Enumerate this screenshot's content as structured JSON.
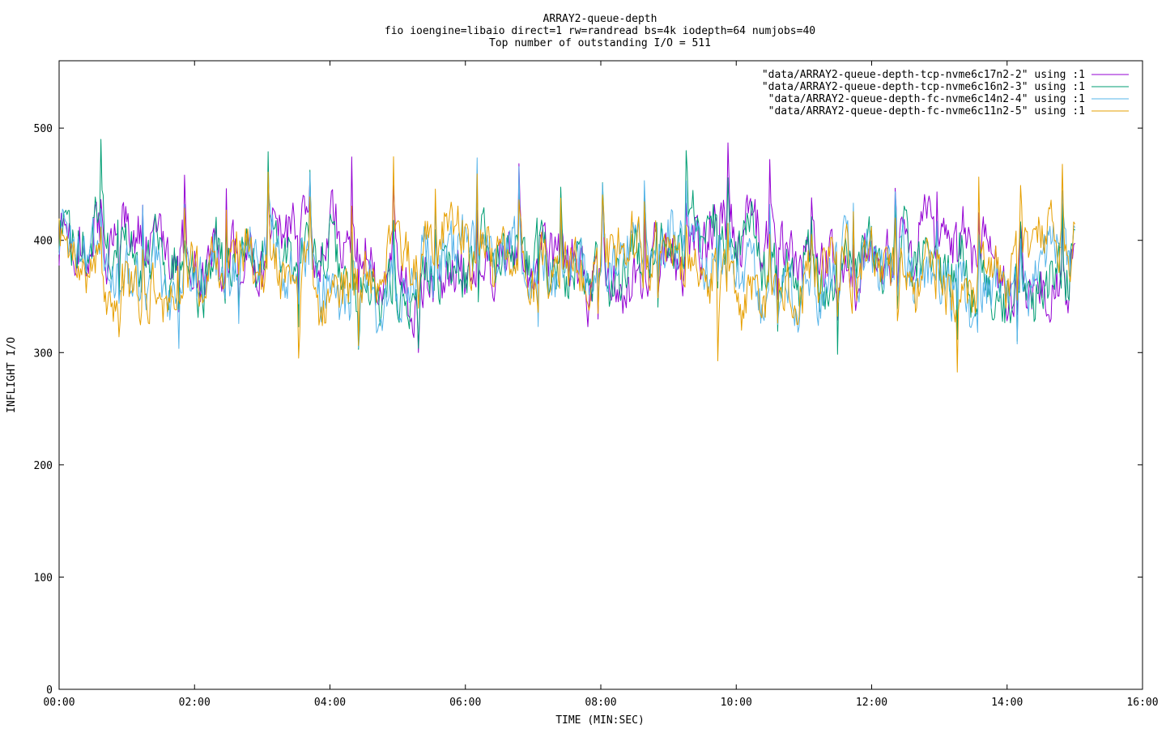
{
  "chart_data": {
    "type": "line",
    "title_lines": [
      "ARRAY2-queue-depth",
      "fio ioengine=libaio direct=1 rw=randread bs=4k iodepth=64 numjobs=40",
      "Top number of outstanding I/O = 511"
    ],
    "xlabel": "TIME (MIN:SEC)",
    "ylabel": "INFLIGHT I/O",
    "xlim": [
      0,
      960
    ],
    "ylim": [
      0,
      560
    ],
    "x_unit": "seconds",
    "x_ticks": [
      0,
      120,
      240,
      360,
      480,
      600,
      720,
      840,
      960
    ],
    "x_tick_labels": [
      "00:00",
      "02:00",
      "04:00",
      "06:00",
      "08:00",
      "10:00",
      "12:00",
      "14:00",
      "16:00"
    ],
    "y_ticks": [
      0,
      100,
      200,
      300,
      400,
      500
    ],
    "y_tick_labels": [
      "0",
      "100",
      "200",
      "300",
      "400",
      "500"
    ],
    "grid": false,
    "legend_position": "top-right",
    "series": [
      {
        "name": "\"data/ARRAY2-queue-depth-tcp-nvme6c17n2-2\" using :1",
        "color": "#9400d3",
        "points_per_series": 900,
        "mean": 385,
        "amplitude": 45,
        "min_observed": 300,
        "max_observed": 511,
        "x_end": 900
      },
      {
        "name": "\"data/ARRAY2-queue-depth-tcp-nvme6c16n2-3\" using :1",
        "color": "#009e73",
        "points_per_series": 900,
        "mean": 380,
        "amplitude": 43,
        "min_observed": 290,
        "max_observed": 490,
        "x_end": 900
      },
      {
        "name": "\"data/ARRAY2-queue-depth-fc-nvme6c14n2-4\" using :1",
        "color": "#56b4e9",
        "points_per_series": 900,
        "mean": 376,
        "amplitude": 42,
        "min_observed": 259,
        "max_observed": 480,
        "x_end": 900
      },
      {
        "name": "\"data/ARRAY2-queue-depth-fc-nvme6c11n2-5\" using :1",
        "color": "#e69f00",
        "points_per_series": 900,
        "mean": 375,
        "amplitude": 42,
        "min_observed": 273,
        "max_observed": 495,
        "x_end": 900
      }
    ]
  }
}
